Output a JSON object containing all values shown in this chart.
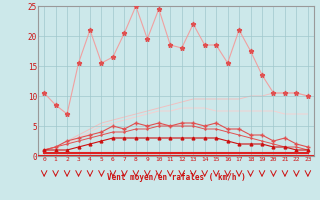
{
  "x": [
    0,
    1,
    2,
    3,
    4,
    5,
    6,
    7,
    8,
    9,
    10,
    11,
    12,
    13,
    14,
    15,
    16,
    17,
    18,
    19,
    20,
    21,
    22,
    23
  ],
  "rafales": [
    10.5,
    8.5,
    7.0,
    15.5,
    21.0,
    15.5,
    16.5,
    20.5,
    25.0,
    19.5,
    24.5,
    18.5,
    18.0,
    22.0,
    18.5,
    18.5,
    15.5,
    21.0,
    17.5,
    13.5,
    10.5,
    10.5,
    10.5,
    10.0
  ],
  "moyen_jagged": [
    1.0,
    1.5,
    2.5,
    3.0,
    3.5,
    4.0,
    5.0,
    4.5,
    5.5,
    5.0,
    5.5,
    5.0,
    5.5,
    5.5,
    5.0,
    5.5,
    4.5,
    4.5,
    3.5,
    3.5,
    2.5,
    3.0,
    2.0,
    1.5
  ],
  "moyen_smooth": [
    1.0,
    1.5,
    2.0,
    2.5,
    3.0,
    3.5,
    4.0,
    4.0,
    4.5,
    4.5,
    5.0,
    5.0,
    5.0,
    5.0,
    4.5,
    4.5,
    4.0,
    3.5,
    3.0,
    2.5,
    2.0,
    1.5,
    1.5,
    1.0
  ],
  "linear_top": [
    1.0,
    1.5,
    2.5,
    3.5,
    4.5,
    5.5,
    6.0,
    6.5,
    7.0,
    7.5,
    8.0,
    8.5,
    9.0,
    9.5,
    9.5,
    9.5,
    9.5,
    9.5,
    10.0,
    10.0,
    10.5,
    10.5,
    10.5,
    10.0
  ],
  "linear_mid": [
    1.0,
    1.5,
    2.0,
    3.0,
    4.0,
    5.0,
    5.5,
    6.0,
    6.5,
    7.0,
    7.5,
    7.5,
    8.0,
    8.0,
    8.0,
    7.5,
    7.5,
    7.5,
    7.5,
    7.5,
    7.5,
    7.0,
    7.0,
    7.0
  ],
  "flat_dark1": [
    1.0,
    1.0,
    1.0,
    1.5,
    2.0,
    2.5,
    3.0,
    3.0,
    3.0,
    3.0,
    3.0,
    3.0,
    3.0,
    3.0,
    3.0,
    3.0,
    2.5,
    2.0,
    2.0,
    2.0,
    1.5,
    1.5,
    1.0,
    1.0
  ],
  "flat_bottom": [
    0.5,
    0.5,
    0.5,
    0.5,
    0.5,
    0.5,
    0.5,
    0.5,
    0.5,
    0.5,
    0.5,
    0.5,
    0.5,
    0.5,
    0.5,
    0.5,
    0.5,
    0.5,
    0.5,
    0.5,
    0.5,
    0.5,
    0.5,
    0.5
  ],
  "flat_bottom2": [
    0.5,
    0.5,
    0.5,
    0.5,
    0.5,
    0.5,
    0.5,
    0.5,
    0.5,
    0.5,
    0.5,
    0.5,
    0.5,
    0.5,
    0.5,
    0.5,
    0.5,
    0.5,
    0.5,
    0.5,
    0.5,
    0.5,
    0.5,
    0.5
  ],
  "ylim": [
    0,
    25
  ],
  "yticks": [
    0,
    5,
    10,
    15,
    20,
    25
  ],
  "xlabel": "Vent moyen/en rafales ( km/h )",
  "bg_color": "#cce8ea",
  "grid_color": "#a0c8cc",
  "color_rafales_light": "#f0a0a0",
  "color_rafales_dark": "#e05050",
  "color_moyen_dark": "#cc2222",
  "color_linear_light": "#f0c0c0",
  "color_linear_mid": "#f5d0d0",
  "color_flat_dark": "#cc1111",
  "color_flat_bottom": "#dd2222",
  "arrow_color": "#cc1111",
  "tick_color": "#cc1111",
  "spine_color": "#999999"
}
